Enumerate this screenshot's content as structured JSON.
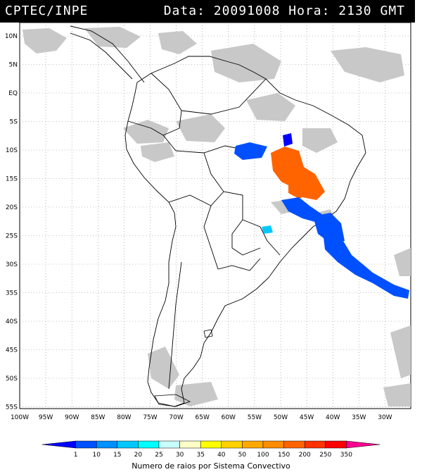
{
  "header": {
    "agency": "CPTEC/INPE",
    "datetime": "Data: 20091008 Hora: 2130 GMT"
  },
  "map": {
    "lat_labels": [
      "10N",
      "5N",
      "EQ",
      "5S",
      "10S",
      "15S",
      "20S",
      "25S",
      "30S",
      "35S",
      "40S",
      "45S",
      "50S",
      "55S"
    ],
    "lon_labels": [
      "100W",
      "95W",
      "90W",
      "85W",
      "80W",
      "75W",
      "70W",
      "65W",
      "60W",
      "55W",
      "50W",
      "45W",
      "40W",
      "35W",
      "30W"
    ]
  },
  "legend": {
    "title": "Numero de raios por Sistema Convectivo",
    "ticks": [
      "1",
      "10",
      "15",
      "20",
      "25",
      "30",
      "35",
      "40",
      "50",
      "100",
      "150",
      "200",
      "250",
      "350"
    ],
    "colors": [
      "#0000ff",
      "#0050ff",
      "#0090ff",
      "#00c8ff",
      "#00ffff",
      "#c8ffff",
      "#ffffc8",
      "#ffff00",
      "#ffd200",
      "#ffa800",
      "#ff8c00",
      "#ff6400",
      "#ff3200",
      "#ff0000",
      "#ff0090"
    ]
  }
}
